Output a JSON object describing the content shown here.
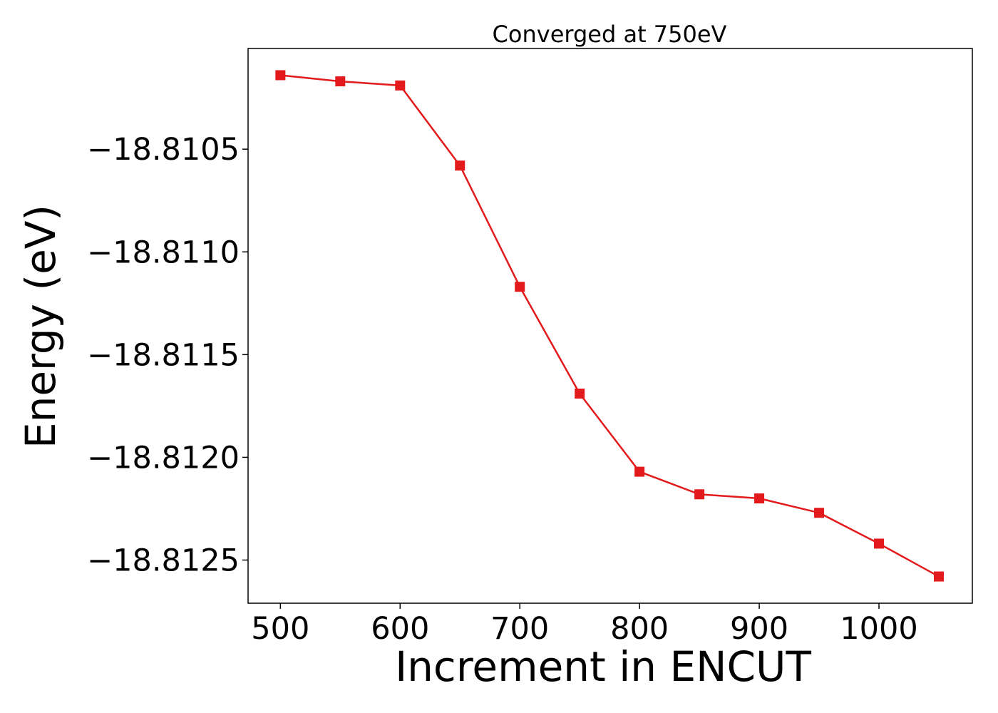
{
  "chart_data": {
    "type": "line",
    "title": "Converged at 750eV",
    "xlabel": "Increment in ENCUT",
    "ylabel": "Energy (eV)",
    "xlim": [
      473,
      1078
    ],
    "ylim": [
      -18.81271,
      -18.81001
    ],
    "grid": false,
    "x_ticks": [
      500,
      600,
      700,
      800,
      900,
      1000
    ],
    "x_tick_labels": [
      "500",
      "600",
      "700",
      "800",
      "900",
      "1000"
    ],
    "y_ticks": [
      -18.8105,
      -18.811,
      -18.8115,
      -18.812,
      -18.8125
    ],
    "y_tick_labels": [
      "−18.8105",
      "−18.8110",
      "−18.8115",
      "−18.8120",
      "−18.8125"
    ],
    "series": [
      {
        "color": "#e31a1c",
        "marker": "square",
        "x": [
          500,
          550,
          600,
          650,
          700,
          750,
          800,
          850,
          900,
          950,
          1000,
          1050
        ],
        "y": [
          -18.81014,
          -18.81017,
          -18.81019,
          -18.81058,
          -18.81117,
          -18.81169,
          -18.81207,
          -18.81218,
          -18.8122,
          -18.81227,
          -18.81242,
          -18.81258
        ]
      }
    ]
  }
}
